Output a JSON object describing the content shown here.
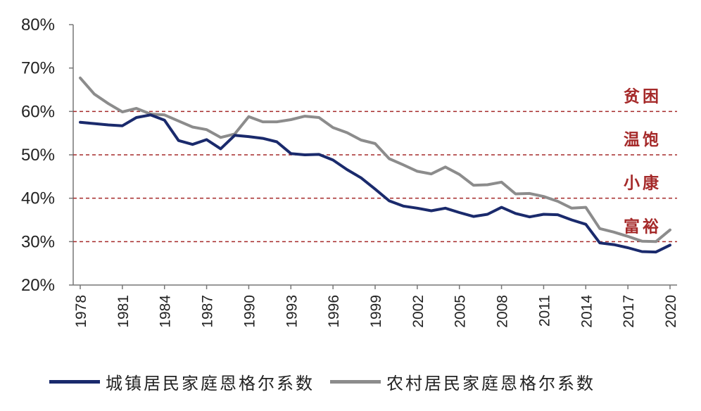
{
  "chart_data": {
    "type": "line",
    "x": [
      1978,
      1979,
      1980,
      1981,
      1982,
      1983,
      1984,
      1985,
      1986,
      1987,
      1988,
      1989,
      1990,
      1991,
      1992,
      1993,
      1994,
      1995,
      1996,
      1997,
      1998,
      1999,
      2000,
      2001,
      2002,
      2003,
      2004,
      2005,
      2006,
      2007,
      2008,
      2009,
      2010,
      2011,
      2012,
      2013,
      2014,
      2015,
      2016,
      2017,
      2018,
      2019,
      2020
    ],
    "x_ticks": [
      "1978",
      "1981",
      "1984",
      "1987",
      "1990",
      "1993",
      "1996",
      "1999",
      "2002",
      "2005",
      "2008",
      "2011",
      "2014",
      "2017",
      "2020"
    ],
    "y_ticks": [
      "20%",
      "30%",
      "40%",
      "50%",
      "60%",
      "70%",
      "80%"
    ],
    "ylim": [
      20,
      80
    ],
    "series": [
      {
        "name": "城镇居民家庭恩格尔系数",
        "color": "#1a2a6c",
        "values": [
          57.5,
          57.2,
          56.9,
          56.7,
          58.6,
          59.2,
          58.0,
          53.3,
          52.4,
          53.5,
          51.4,
          54.5,
          54.2,
          53.8,
          53.0,
          50.3,
          50.0,
          50.1,
          48.8,
          46.6,
          44.7,
          42.1,
          39.4,
          38.2,
          37.7,
          37.1,
          37.7,
          36.7,
          35.8,
          36.3,
          37.9,
          36.5,
          35.7,
          36.3,
          36.2,
          35.0,
          34.0,
          29.7,
          29.3,
          28.6,
          27.7,
          27.6,
          29.2
        ]
      },
      {
        "name": "农村居民家庭恩格尔系数",
        "color": "#8c8c8c",
        "values": [
          67.7,
          64.0,
          61.8,
          59.9,
          60.7,
          59.4,
          59.2,
          57.8,
          56.4,
          55.8,
          54.0,
          54.8,
          58.8,
          57.6,
          57.6,
          58.1,
          58.9,
          58.6,
          56.3,
          55.1,
          53.4,
          52.6,
          49.1,
          47.7,
          46.2,
          45.6,
          47.2,
          45.5,
          43.0,
          43.1,
          43.7,
          41.0,
          41.1,
          40.4,
          39.3,
          37.7,
          37.9,
          33.0,
          32.2,
          31.2,
          30.1,
          30.0,
          32.7
        ]
      }
    ],
    "bands": [
      {
        "label": "贫困",
        "value": 60
      },
      {
        "label": "温饱",
        "value": 50
      },
      {
        "label": "小康",
        "value": 40
      },
      {
        "label": "富裕",
        "value": 30
      }
    ],
    "band_color": "#a52a2a",
    "grid": false,
    "legend_position": "bottom"
  }
}
